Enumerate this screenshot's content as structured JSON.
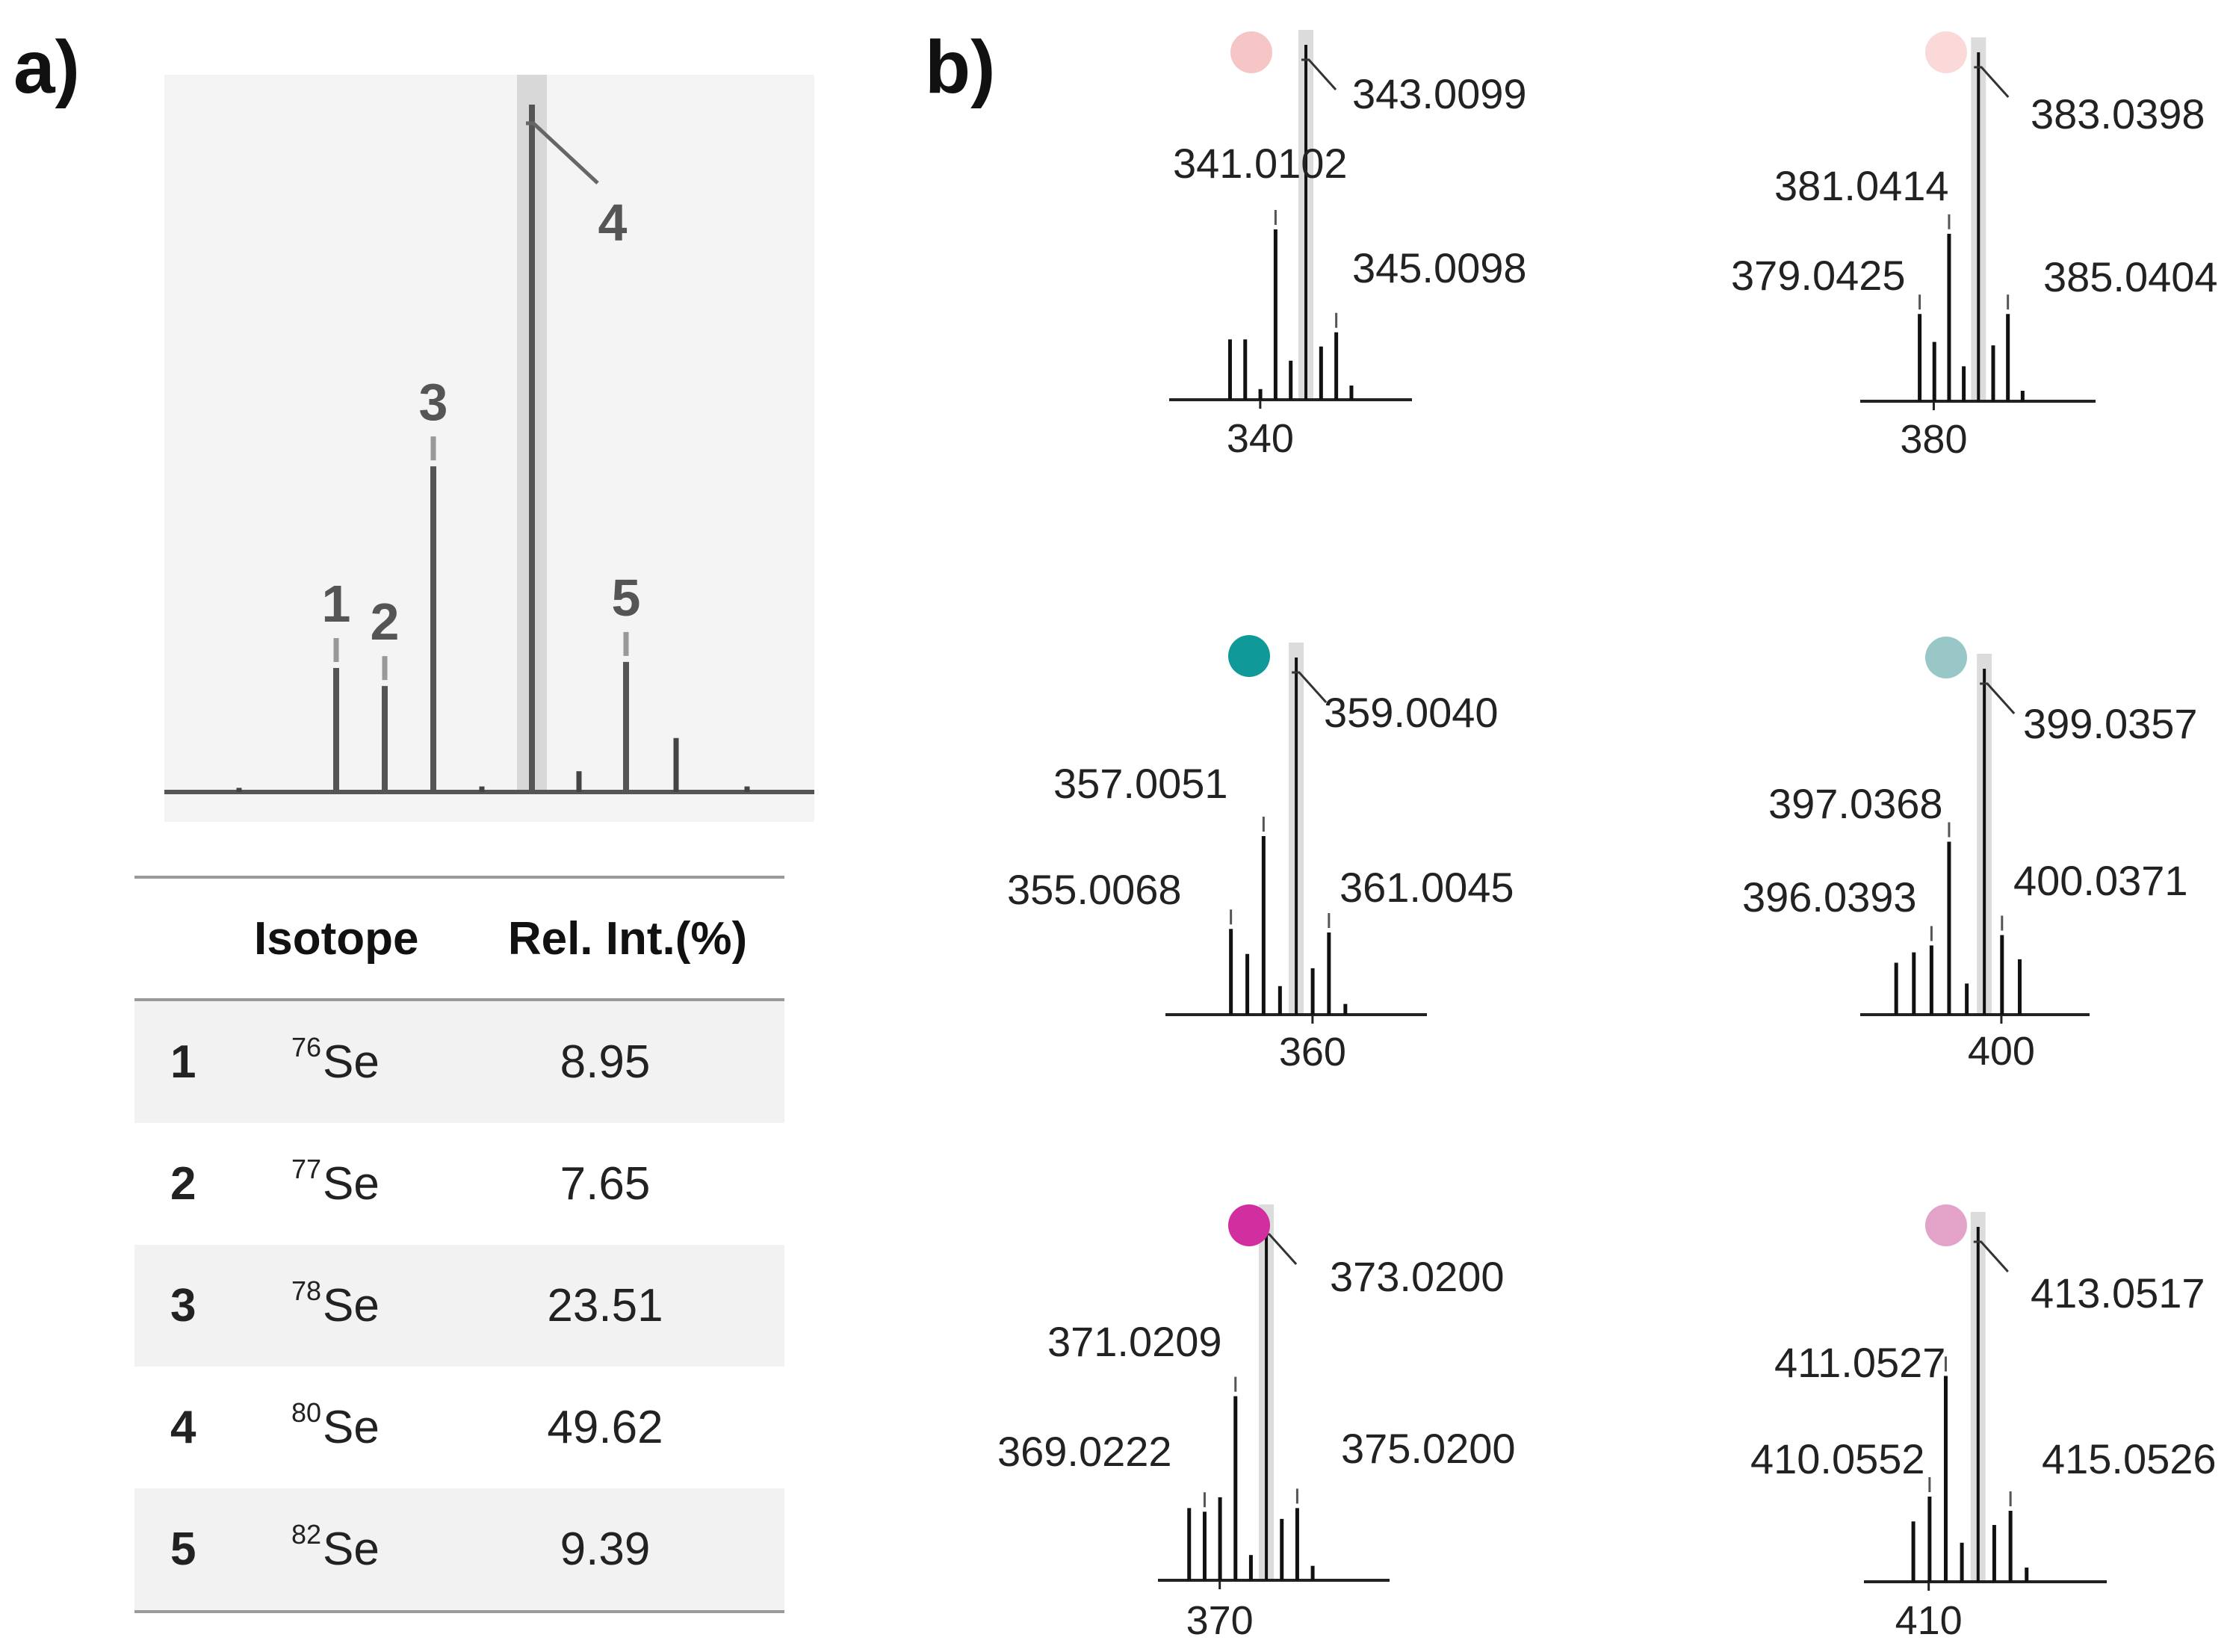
{
  "panels": {
    "a": "a)",
    "b": "b)"
  },
  "chart_data": [
    {
      "id": "a",
      "type": "bar",
      "x": [
        1,
        2,
        3,
        4,
        5
      ],
      "values": [
        8.95,
        7.65,
        23.51,
        49.62,
        9.39
      ],
      "peak_labels": [
        "1",
        "2",
        "3",
        "4",
        "5"
      ],
      "highlight_peak": "4",
      "minor_peaks": [
        0.3,
        0.4,
        1.5,
        3.9,
        0.4
      ]
    },
    {
      "id": "b1",
      "type": "bar",
      "marker_color": "#f6c6c6",
      "x_tick": "340",
      "xlim": [
        334.0,
        350.0
      ],
      "x": [
        338.01,
        339.01,
        340.01,
        341.0102,
        342.01,
        343.0099,
        344.01,
        345.0098,
        346.01
      ],
      "values": [
        17,
        17,
        3,
        48,
        11,
        100,
        15,
        19,
        4
      ],
      "labels": [
        "341.0102",
        "343.0099",
        "345.0098"
      ],
      "base_peak": "343.0099"
    },
    {
      "id": "b2",
      "type": "bar",
      "marker_color": "#fbd9d9",
      "x_tick": "380",
      "xlim": [
        375.0,
        391.0
      ],
      "x": [
        379.0425,
        380.04,
        381.0414,
        382.04,
        383.0398,
        384.04,
        385.0404,
        386.04
      ],
      "values": [
        25,
        17,
        48,
        10,
        100,
        16,
        25,
        3
      ],
      "labels": [
        "379.0425",
        "381.0414",
        "383.0398",
        "385.0404"
      ],
      "base_peak": "383.0398"
    },
    {
      "id": "b3",
      "type": "bar",
      "marker_color": "#0f9a99",
      "x_tick": "360",
      "xlim": [
        351.0,
        367.0
      ],
      "x": [
        355.0068,
        356.01,
        357.0051,
        358.01,
        359.004,
        360.01,
        361.0045,
        362.01
      ],
      "values": [
        24,
        17,
        50,
        8,
        100,
        13,
        23,
        3
      ],
      "labels": [
        "355.0068",
        "357.0051",
        "359.0040",
        "361.0045"
      ],
      "base_peak": "359.0040"
    },
    {
      "id": "b4",
      "type": "bar",
      "marker_color": "#99c7c7",
      "x_tick": "400",
      "xlim": [
        392.0,
        405.0
      ],
      "x": [
        394.04,
        395.04,
        396.0393,
        397.0368,
        398.04,
        399.0357,
        400.0371,
        401.04
      ],
      "values": [
        15,
        18,
        20,
        50,
        9,
        100,
        23,
        16
      ],
      "labels": [
        "396.0393",
        "397.0368",
        "399.0357",
        "400.0371"
      ],
      "base_peak": "399.0357"
    },
    {
      "id": "b5",
      "type": "bar",
      "marker_color": "#d12fa0",
      "x_tick": "370",
      "xlim": [
        366.0,
        381.0
      ],
      "x": [
        368.02,
        369.0222,
        370.02,
        371.0209,
        372.02,
        373.02,
        374.02,
        375.02,
        376.02
      ],
      "values": [
        20,
        19,
        23,
        51,
        7,
        100,
        17,
        20,
        4
      ],
      "labels": [
        "369.0222",
        "371.0209",
        "373.0200",
        "375.0200"
      ],
      "base_peak": "373.0200"
    },
    {
      "id": "b6",
      "type": "bar",
      "marker_color": "#e3a3c9",
      "x_tick": "410",
      "xlim": [
        406.0,
        421.0
      ],
      "x": [
        409.05,
        410.0552,
        411.0527,
        412.05,
        413.0517,
        414.05,
        415.0526,
        416.05
      ],
      "values": [
        17,
        24,
        58,
        11,
        100,
        16,
        20,
        4
      ],
      "labels": [
        "410.0552",
        "411.0527",
        "413.0517",
        "415.0526"
      ],
      "base_peak": "413.0517"
    }
  ],
  "table": {
    "headers": {
      "isotope": "Isotope",
      "rel_int": "Rel. Int.(%)"
    },
    "rows": [
      {
        "num": "1",
        "mass": "76",
        "element": "Se",
        "rel": "8.95"
      },
      {
        "num": "2",
        "mass": "77",
        "element": "Se",
        "rel": "7.65"
      },
      {
        "num": "3",
        "mass": "78",
        "element": "Se",
        "rel": "23.51"
      },
      {
        "num": "4",
        "mass": "80",
        "element": "Se",
        "rel": "49.62"
      },
      {
        "num": "5",
        "mass": "82",
        "element": "Se",
        "rel": "9.39"
      }
    ]
  }
}
